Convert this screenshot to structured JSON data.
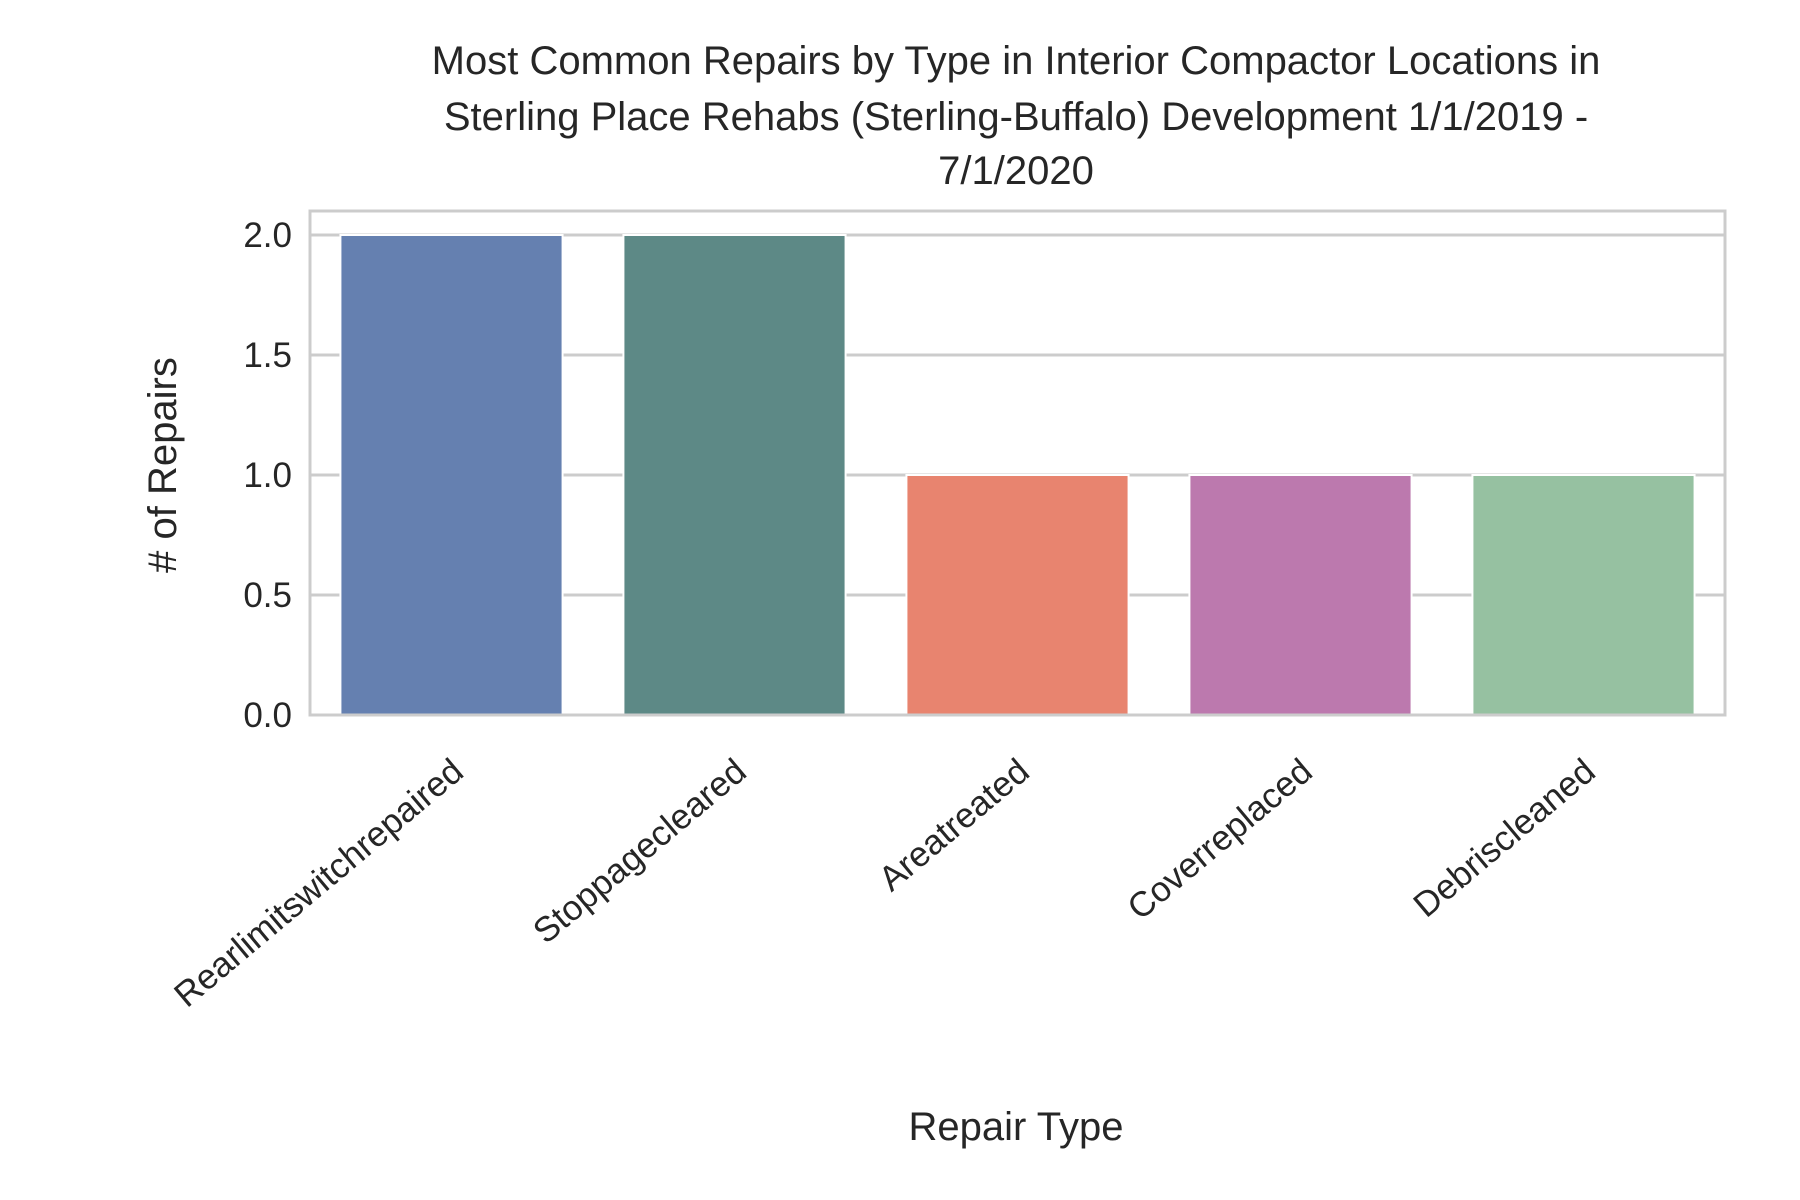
{
  "chart_data": {
    "type": "bar",
    "title_lines": [
      "Most Common Repairs by Type in Interior Compactor Locations in",
      "Sterling Place Rehabs (Sterling-Buffalo) Development 1/1/2019 -",
      "7/1/2020"
    ],
    "xlabel": "Repair Type",
    "ylabel": "# of Repairs",
    "categories": [
      "Rearlimitswitchrepaired",
      "Stoppagecleared",
      "Areatreated",
      "Coverreplaced",
      "Debriscleaned"
    ],
    "values": [
      2,
      2,
      1,
      1,
      1
    ],
    "colors": [
      "#6580b0",
      "#5d8986",
      "#e8846f",
      "#bc79ae",
      "#96c1a1"
    ],
    "ylim": [
      0,
      2.1
    ],
    "yticks": [
      0.0,
      0.5,
      1.0,
      1.5,
      2.0
    ],
    "ytick_labels": [
      "0.0",
      "0.5",
      "1.0",
      "1.5",
      "2.0"
    ],
    "grid": true,
    "gridline_color": "#cccccc",
    "spine_color": "#cccccc",
    "text_color": "#262626"
  }
}
